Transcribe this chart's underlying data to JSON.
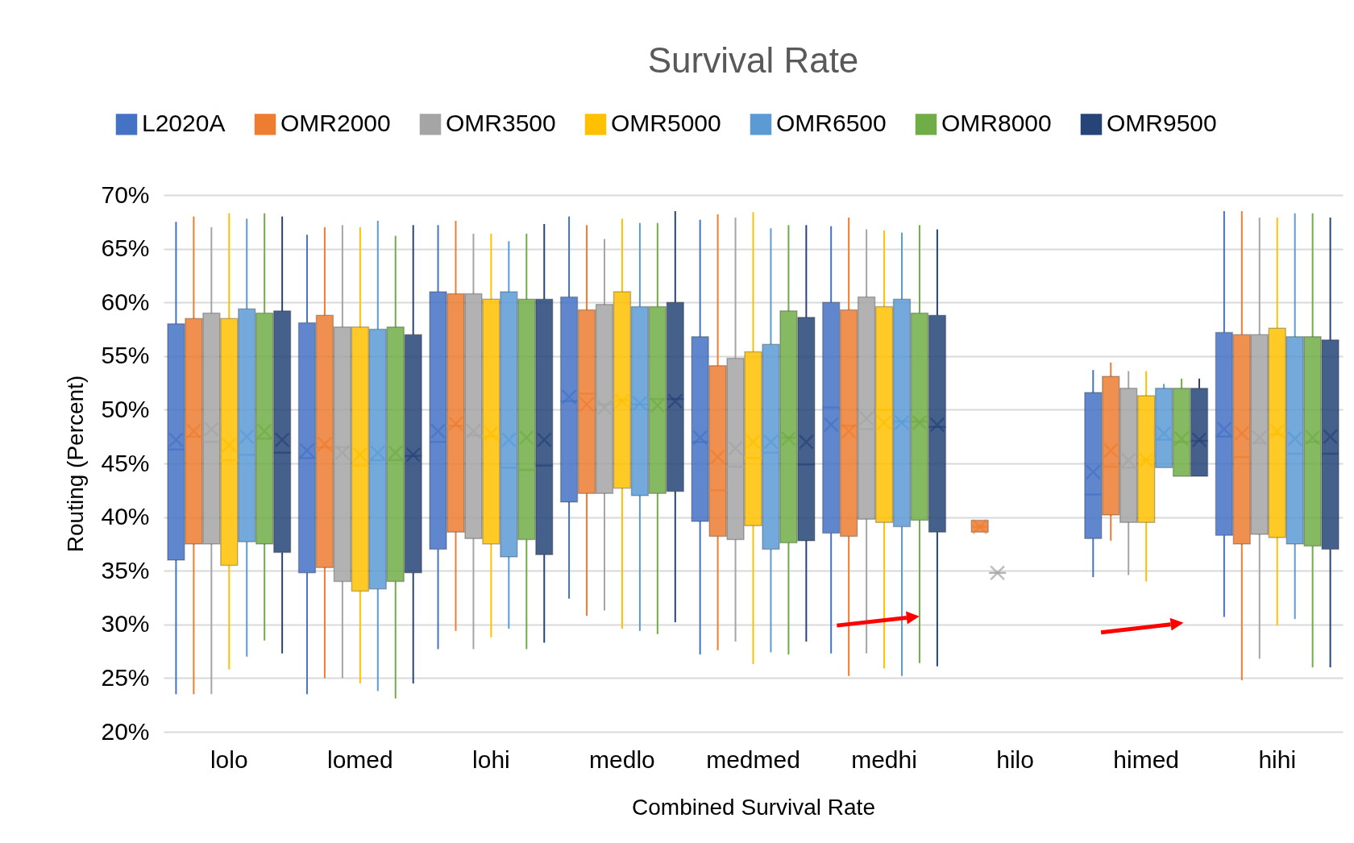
{
  "chart_data": {
    "type": "box",
    "title": "Survival Rate",
    "xlabel": "Combined Survival Rate",
    "ylabel": "Routing (Percent)",
    "categories": [
      "lolo",
      "lomed",
      "lohi",
      "medlo",
      "medmed",
      "medhi",
      "hilo",
      "himed",
      "hihi"
    ],
    "ylim": [
      20,
      70
    ],
    "yticks": [
      {
        "value": 20,
        "label": "20%"
      },
      {
        "value": 25,
        "label": "25%"
      },
      {
        "value": 30,
        "label": "30%"
      },
      {
        "value": 35,
        "label": "35%"
      },
      {
        "value": 40,
        "label": "40%"
      },
      {
        "value": 45,
        "label": "45%"
      },
      {
        "value": 50,
        "label": "50%"
      },
      {
        "value": 55,
        "label": "55%"
      },
      {
        "value": 60,
        "label": "60%"
      },
      {
        "value": 65,
        "label": "65%"
      },
      {
        "value": 70,
        "label": "70%"
      }
    ],
    "grid": "y",
    "legend": "top",
    "series": [
      {
        "name": "L2020A",
        "color": "#4472c4",
        "boxes": [
          {
            "low": 23.5,
            "q1": 36,
            "median": 46.3,
            "q3": 58,
            "high": 67.5,
            "mean": 47.2
          },
          {
            "low": 23.5,
            "q1": 34.8,
            "median": 45.5,
            "q3": 58.1,
            "high": 66.3,
            "mean": 46.2
          },
          {
            "low": 27.7,
            "q1": 37,
            "median": 47,
            "q3": 61,
            "high": 67.2,
            "mean": 48
          },
          {
            "low": 32.4,
            "q1": 41.4,
            "median": 50.8,
            "q3": 60.5,
            "high": 68,
            "mean": 51.2
          },
          {
            "low": 27.2,
            "q1": 39.6,
            "median": 47,
            "q3": 56.8,
            "high": 67.7,
            "mean": 47.4
          },
          {
            "low": 27.3,
            "q1": 38.5,
            "median": 50.2,
            "q3": 60,
            "high": 67.1,
            "mean": 48.6
          },
          null,
          {
            "low": 34.4,
            "q1": 38,
            "median": 42.1,
            "q3": 51.6,
            "high": 53.7,
            "mean": 44.2
          },
          {
            "low": 30.7,
            "q1": 38.3,
            "median": 47.5,
            "q3": 57.2,
            "high": 68.5,
            "mean": 48.2
          }
        ]
      },
      {
        "name": "OMR2000",
        "color": "#ed7d31",
        "boxes": [
          {
            "low": 23.5,
            "q1": 37.5,
            "median": 47.5,
            "q3": 58.5,
            "high": 68,
            "mean": 48
          },
          {
            "low": 25,
            "q1": 35.3,
            "median": 46.5,
            "q3": 58.8,
            "high": 67,
            "mean": 46.8
          },
          {
            "low": 29.4,
            "q1": 38.6,
            "median": 48.5,
            "q3": 60.8,
            "high": 67.6,
            "mean": 48.7
          },
          {
            "low": 30.8,
            "q1": 42.2,
            "median": 51.5,
            "q3": 59.3,
            "high": 67.2,
            "mean": 50.5
          },
          {
            "low": 27.6,
            "q1": 38.2,
            "median": 42.5,
            "q3": 54.1,
            "high": 68.2,
            "mean": 45.6
          },
          {
            "low": 25.2,
            "q1": 38.2,
            "median": 48.5,
            "q3": 59.3,
            "high": 67.9,
            "mean": 48
          },
          {
            "low": 38.6,
            "q1": 38.6,
            "median": 39.1,
            "q3": 39.7,
            "high": 39.7,
            "mean": 39.1
          },
          {
            "low": 37.8,
            "q1": 40.2,
            "median": 44.7,
            "q3": 53.1,
            "high": 54.4,
            "mean": 46.2
          },
          {
            "low": 24.8,
            "q1": 37.5,
            "median": 45.6,
            "q3": 57,
            "high": 68.5,
            "mean": 47.8
          }
        ]
      },
      {
        "name": "OMR3500",
        "color": "#a5a5a5",
        "boxes": [
          {
            "low": 23.5,
            "q1": 37.5,
            "median": 47,
            "q3": 59,
            "high": 67,
            "mean": 48.2
          },
          {
            "low": 25,
            "q1": 34,
            "median": 46.5,
            "q3": 57.7,
            "high": 67.2,
            "mean": 46
          },
          {
            "low": 27.7,
            "q1": 38,
            "median": 47.6,
            "q3": 60.8,
            "high": 66.4,
            "mean": 48
          },
          {
            "low": 31.3,
            "q1": 42.2,
            "median": 50.5,
            "q3": 59.8,
            "high": 65.9,
            "mean": 50.2
          },
          {
            "low": 28.4,
            "q1": 37.9,
            "median": 44.7,
            "q3": 54.8,
            "high": 67.9,
            "mean": 46.4
          },
          {
            "low": 27.3,
            "q1": 39.8,
            "median": 48.2,
            "q3": 60.5,
            "high": 66.8,
            "mean": 49.2
          },
          {
            "low": 34.8,
            "q1": 34.8,
            "median": 34.8,
            "q3": 34.8,
            "high": 34.8,
            "mean": 34.8
          },
          {
            "low": 34.6,
            "q1": 39.5,
            "median": 44.6,
            "q3": 52,
            "high": 53.6,
            "mean": 45.3
          },
          {
            "low": 26.8,
            "q1": 38.4,
            "median": 46.9,
            "q3": 57,
            "high": 67.9,
            "mean": 47.4
          }
        ]
      },
      {
        "name": "OMR5000",
        "color": "#ffc000",
        "boxes": [
          {
            "low": 25.8,
            "q1": 35.5,
            "median": 45.3,
            "q3": 58.5,
            "high": 68.3,
            "mean": 46.7
          },
          {
            "low": 24.5,
            "q1": 33.1,
            "median": 44.8,
            "q3": 57.7,
            "high": 67,
            "mean": 45.8
          },
          {
            "low": 28.8,
            "q1": 37.5,
            "median": 47.5,
            "q3": 60.3,
            "high": 66.4,
            "mean": 47.8
          },
          {
            "low": 29.6,
            "q1": 42.7,
            "median": 50.9,
            "q3": 61,
            "high": 67.8,
            "mean": 50.8
          },
          {
            "low": 26.3,
            "q1": 39.2,
            "median": 45.5,
            "q3": 55.4,
            "high": 68.4,
            "mean": 47
          },
          {
            "low": 25.9,
            "q1": 39.5,
            "median": 50,
            "q3": 59.6,
            "high": 66.7,
            "mean": 48.8
          },
          null,
          {
            "low": 34,
            "q1": 39.5,
            "median": 45.3,
            "q3": 51.3,
            "high": 53.6,
            "mean": 45.3
          },
          {
            "low": 29.9,
            "q1": 38.1,
            "median": 47.7,
            "q3": 57.6,
            "high": 67.9,
            "mean": 48
          }
        ]
      },
      {
        "name": "OMR6500",
        "color": "#5b9bd5",
        "boxes": [
          {
            "low": 27,
            "q1": 37.7,
            "median": 45.8,
            "q3": 59.4,
            "high": 67.8,
            "mean": 47.5
          },
          {
            "low": 23.8,
            "q1": 33.3,
            "median": 45.3,
            "q3": 57.5,
            "high": 67.6,
            "mean": 46
          },
          {
            "low": 29.6,
            "q1": 36.3,
            "median": 44.6,
            "q3": 61,
            "high": 65.7,
            "mean": 47.2
          },
          {
            "low": 29.4,
            "q1": 42,
            "median": 50.5,
            "q3": 59.6,
            "high": 67.4,
            "mean": 50.6
          },
          {
            "low": 27.4,
            "q1": 37,
            "median": 46,
            "q3": 56.1,
            "high": 66.9,
            "mean": 47
          },
          {
            "low": 25.2,
            "q1": 39.1,
            "median": 48.9,
            "q3": 60.3,
            "high": 66.5,
            "mean": 48.8
          },
          null,
          {
            "low": 44.6,
            "q1": 44.6,
            "median": 47.2,
            "q3": 52,
            "high": 52.4,
            "mean": 47.8
          },
          {
            "low": 30.5,
            "q1": 37.5,
            "median": 45.9,
            "q3": 56.8,
            "high": 68.3,
            "mean": 47.3
          }
        ]
      },
      {
        "name": "OMR8000",
        "color": "#70ad47",
        "boxes": [
          {
            "low": 28.5,
            "q1": 37.5,
            "median": 47.3,
            "q3": 59,
            "high": 68.3,
            "mean": 48
          },
          {
            "low": 23.1,
            "q1": 34,
            "median": 45.3,
            "q3": 57.7,
            "high": 66.2,
            "mean": 46
          },
          {
            "low": 27.7,
            "q1": 37.9,
            "median": 44.4,
            "q3": 60.3,
            "high": 66.4,
            "mean": 47.4
          },
          {
            "low": 29.1,
            "q1": 42.2,
            "median": 51,
            "q3": 59.6,
            "high": 67.4,
            "mean": 50.4
          },
          {
            "low": 27.2,
            "q1": 37.6,
            "median": 47.4,
            "q3": 59.2,
            "high": 67.2,
            "mean": 47.3
          },
          {
            "low": 26.4,
            "q1": 39.7,
            "median": 48.9,
            "q3": 59,
            "high": 67.2,
            "mean": 48.8
          },
          null,
          {
            "low": 43.8,
            "q1": 43.8,
            "median": 47,
            "q3": 52,
            "high": 52.9,
            "mean": 47.3
          },
          {
            "low": 26,
            "q1": 37.3,
            "median": 47,
            "q3": 56.8,
            "high": 68.3,
            "mean": 47.4
          }
        ]
      },
      {
        "name": "OMR9500",
        "color": "#264478",
        "boxes": [
          {
            "low": 27.3,
            "q1": 36.7,
            "median": 46,
            "q3": 59.2,
            "high": 68,
            "mean": 47.2
          },
          {
            "low": 24.5,
            "q1": 34.8,
            "median": 45.7,
            "q3": 57,
            "high": 67.2,
            "mean": 45.8
          },
          {
            "low": 28.3,
            "q1": 36.5,
            "median": 44.8,
            "q3": 60.3,
            "high": 67.3,
            "mean": 47.2
          },
          {
            "low": 30.2,
            "q1": 42.4,
            "median": 51,
            "q3": 60,
            "high": 68.5,
            "mean": 50.8
          },
          {
            "low": 28.4,
            "q1": 37.8,
            "median": 44.9,
            "q3": 58.6,
            "high": 67.2,
            "mean": 47
          },
          {
            "low": 26.1,
            "q1": 38.6,
            "median": 48.4,
            "q3": 58.8,
            "high": 66.8,
            "mean": 48.6
          },
          null,
          {
            "low": 43.8,
            "q1": 43.8,
            "median": 47.1,
            "q3": 52,
            "high": 52.9,
            "mean": 47.2
          },
          {
            "low": 26,
            "q1": 37,
            "median": 45.9,
            "q3": 56.5,
            "high": 67.9,
            "mean": 47.5
          }
        ]
      }
    ]
  }
}
